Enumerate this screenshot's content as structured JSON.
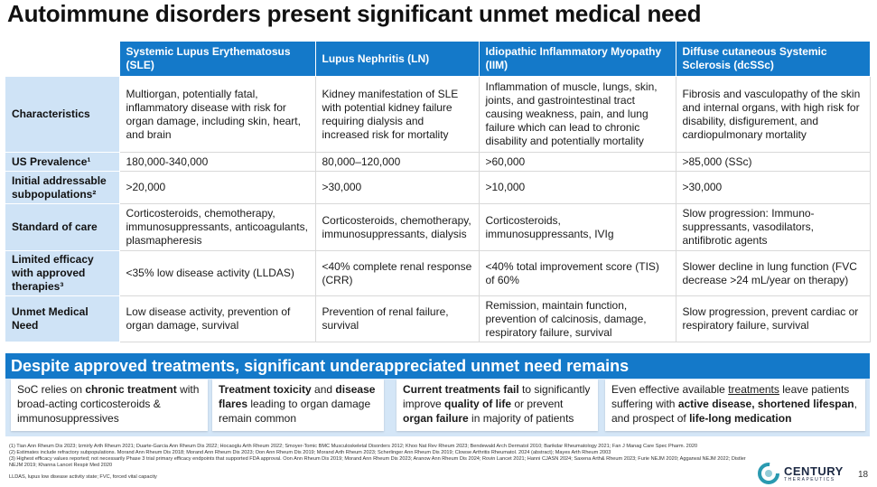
{
  "title": "Autoimmune disorders present significant unmet medical need",
  "table": {
    "columns": [
      "Systemic Lupus Erythematosus (SLE)",
      "Lupus Nephritis (LN)",
      "Idiopathic Inflammatory Myopathy (IIM)",
      "Diffuse cutaneous Systemic Sclerosis (dcSSc)"
    ],
    "rows": [
      {
        "label": "Characteristics",
        "cells": [
          "Multiorgan, potentially fatal, inflammatory disease with risk for organ damage, including skin, heart, and brain",
          "Kidney manifestation of SLE with potential kidney failure requiring dialysis and increased risk for mortality",
          "Inflammation of muscle, lungs, skin, joints, and gastrointestinal tract causing weakness, pain, and lung failure which can lead to chronic disability and potentially mortality",
          "Fibrosis and vasculopathy of the skin and internal organs, with high risk for disability, disfigurement, and cardiopulmonary mortality"
        ]
      },
      {
        "label": "US Prevalence¹",
        "cells": [
          "180,000-340,000",
          "80,000–120,000",
          ">60,000",
          ">85,000 (SSc)"
        ]
      },
      {
        "label": "Initial addressable subpopulations²",
        "cells": [
          ">20,000",
          ">30,000",
          ">10,000",
          ">30,000"
        ]
      },
      {
        "label": "Standard of care",
        "cells": [
          "Corticosteroids, chemotherapy, immunosuppressants, anticoagulants, plasmapheresis",
          "Corticosteroids, chemotherapy, immunosuppressants, dialysis",
          "Corticosteroids, immunosuppressants, IVIg",
          "Slow progression: Immuno-suppressants, vasodilators, antifibrotic agents"
        ]
      },
      {
        "label": "Limited efficacy with approved therapies³",
        "cells": [
          "<35% low disease activity (LLDAS)",
          "<40% complete renal response (CRR)",
          "<40% total improvement score (TIS) of 60%",
          "Slower decline in lung function (FVC decrease >24 mL/year on therapy)"
        ]
      },
      {
        "label": "Unmet Medical Need",
        "cells": [
          "Low disease activity, prevention of organ damage, survival",
          "Prevention of renal failure, survival",
          "Remission, maintain function, prevention of calcinosis, damage, respiratory failure, survival",
          "Slow progression, prevent cardiac or respiratory failure, survival"
        ]
      }
    ]
  },
  "banner": "Despite approved treatments, significant underappreciated unmet need remains",
  "boxes": {
    "b1": {
      "t1": "SoC relies on ",
      "s1": "chronic treatment",
      "t2": " with broad-acting corticosteroids & immunosuppressives"
    },
    "b2": {
      "s1": "Treatment toxicity",
      "t1": " and ",
      "s2": "disease flares",
      "t2": " leading to organ damage remain common"
    },
    "b3": {
      "s1": "Current treatments fail",
      "t1": " to significantly improve ",
      "s2": "quality of life",
      "t2": " or prevent ",
      "s3": "organ failure",
      "t3": " in majority of patients"
    },
    "b4": {
      "t1": "Even effective available ",
      "u1": "treatments",
      "t2": " leave patients suffering with ",
      "s1": "active disease, shortened lifespan",
      "t3": ", and prospect of ",
      "s2": "life-long medication"
    }
  },
  "references": {
    "r1": "(1) Tian Ann Rheum Dis 2023; Izmirly Arth Rheum 2021; Duarte-Garcia Ann Rheum Dis 2022; Hocaoglu Arth Rheum 2022; Smoyer-Tomic BMC Musculoskeletal Disorders 2012; Khoo Nat Rev Rheum 2023; Bendewald Arch Dermatol 2010; Barikdar Rheumatology 2021; Fan J Manag Care Spec Pharm. 2020",
    "r2": "(2) Estimates include refractory subpopulations. Morand Ann Rheum Dis 2018; Morand Ann Rheum Dis 2023; Oon Ann Rheum Dis 2019; Morand Arth Rheum 2023; Scherlinger Ann Rheum Dis 2019; Clowse Arthritis Rheumatol. 2024 (abstract); Mayes Arth Rheum 2003",
    "r3": "(3) Highest efficacy values reported; not necessarily Phase 3 trial primary efficacy endpoints that supported FDA approval. Oon Ann Rheum Dis 2019; Morand Ann Rheum Dis 2023; Aranow Ann Rheum Dis 2024; Rovin Lancet 2021; Hanni CJASN 2024; Saxena Arth& Rheum 2023; Furie NEJM 2020; Aggarwal NEJM 2022; Distler NEJM 2019; Khanna Lancet Respir Med 2020",
    "abbr": "LLDAS, lupus low disease activity state; FVC, forced vital capacity"
  },
  "logo": {
    "name": "CENTURY",
    "sub": "THERAPEUTICS"
  },
  "page_number": "18",
  "colors": {
    "header_blue": "#1479c9",
    "row_label_bg": "#cfe3f6",
    "panel_bg": "#d4e6f7",
    "logo_teal": "#2a9ab0"
  }
}
